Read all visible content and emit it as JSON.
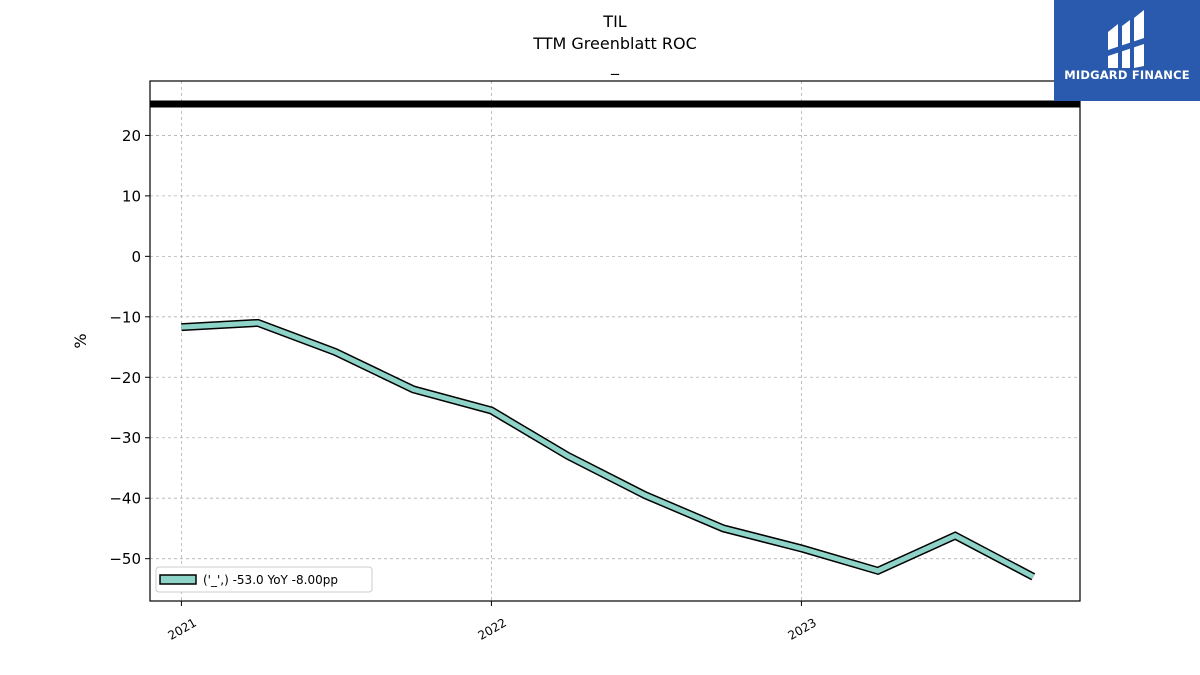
{
  "chart_data": {
    "type": "line",
    "title_lines": [
      "TIL",
      "TTM Greenblatt ROC",
      "_"
    ],
    "ylabel": "%",
    "xlabel": "",
    "ylim": [
      -57,
      29
    ],
    "yticks": [
      20,
      10,
      0,
      -10,
      -20,
      -30,
      -40,
      -50
    ],
    "ytick_labels": [
      "20",
      "10",
      "0",
      "−10",
      "−20",
      "−30",
      "−40",
      "−50"
    ],
    "xlim": [
      "2020-11-25",
      "2023-11-25"
    ],
    "xticks": [
      "2021-01-01",
      "2022-01-01",
      "2023-01-01"
    ],
    "xtick_labels": [
      "2021",
      "2022",
      "2023"
    ],
    "grid": true,
    "reference_line": {
      "y": 25.2,
      "color": "#000000"
    },
    "series": [
      {
        "name": "('_',) -53.0 YoY -8.00pp",
        "color": "#8dd3c7",
        "x": [
          "2021-01-01",
          "2021-04-01",
          "2021-07-01",
          "2021-10-01",
          "2022-01-01",
          "2022-04-01",
          "2022-07-01",
          "2022-10-01",
          "2023-01-01",
          "2023-04-01",
          "2023-07-01",
          "2023-10-01"
        ],
        "y": [
          -11.7,
          -11.0,
          -15.8,
          -22.0,
          -25.5,
          -33.0,
          -39.5,
          -45.0,
          -48.3,
          -52.0,
          -46.2,
          -53.0
        ]
      }
    ],
    "legend": {
      "position": "lower-left",
      "label": "('_',) -53.0 YoY -8.00pp"
    }
  },
  "logo": {
    "text": "MIDGARD FINANCE",
    "background": "#2a5aad"
  }
}
